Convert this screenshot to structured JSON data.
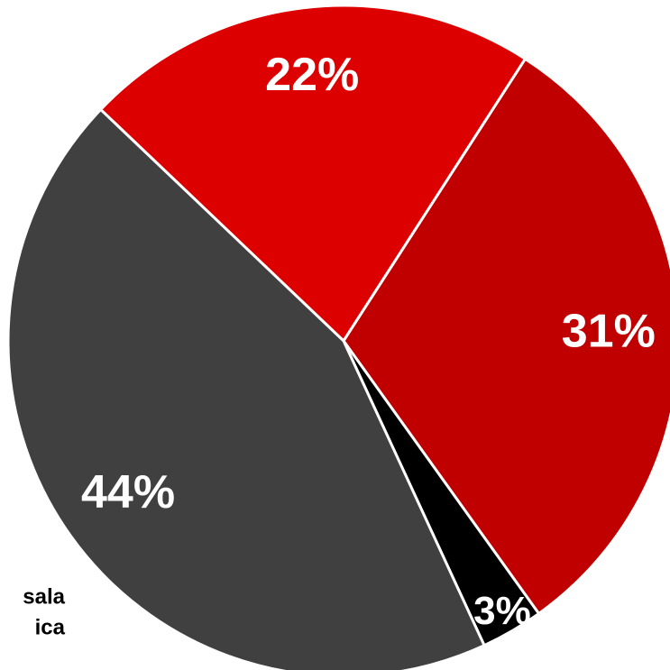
{
  "chart_data": {
    "type": "pie",
    "values": [
      22,
      31,
      3,
      44
    ],
    "value_labels": [
      "22%",
      "31%",
      "3%",
      "44%"
    ],
    "colors": [
      "#dd0000",
      "#c00000",
      "#000000",
      "#404040"
    ],
    "annotations": [
      "sala",
      "ica"
    ]
  }
}
